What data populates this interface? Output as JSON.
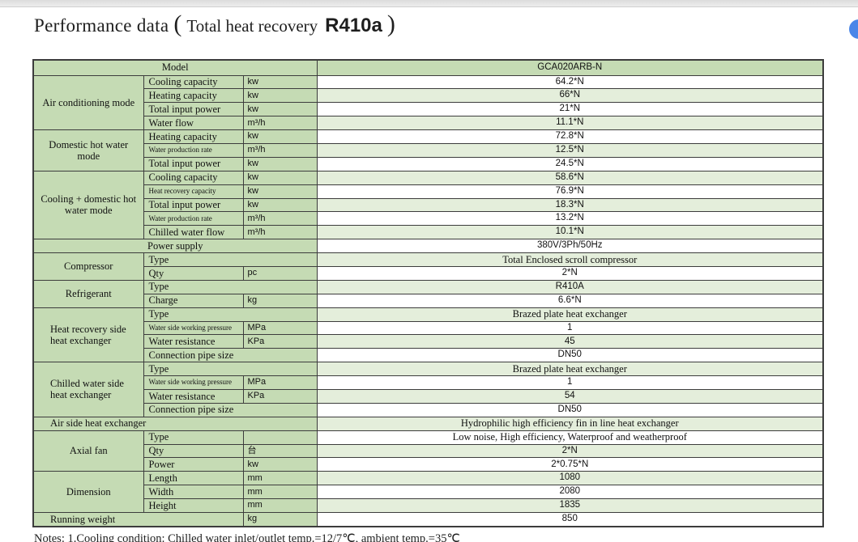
{
  "title": {
    "prefix": "Performance data",
    "paren_open": "(",
    "middle": "Total heat recovery",
    "model_code": "R410a",
    "paren_close": ")"
  },
  "colors": {
    "label_green": "#c5dbb4",
    "row_green": "#e4eedb",
    "border": "#3c3c3c",
    "accent_blue": "#4a86e8"
  },
  "table": {
    "model_row": {
      "label": "Model",
      "value": "GCA020ARB-N"
    },
    "rows": [
      {
        "cat": "Air conditioning mode",
        "label": "Cooling capacity",
        "unit": "kw",
        "value": "64.2*N"
      },
      {
        "label": "Heating capacity",
        "unit": "kw",
        "value": "66*N"
      },
      {
        "label": "Total input power",
        "unit": "kw",
        "value": "21*N"
      },
      {
        "label": "Water flow",
        "unit": "m³/h",
        "value": "11.1*N"
      },
      {
        "cat": "Domestic hot water mode",
        "label": "Heating capacity",
        "unit": "kw",
        "value": "72.8*N"
      },
      {
        "label": "Water production rate",
        "unit": "m³/h",
        "value": "12.5*N"
      },
      {
        "label": "Total input power",
        "unit": "kw",
        "value": "24.5*N"
      },
      {
        "cat": "Cooling + domestic hot water mode",
        "label": "Cooling capacity",
        "unit": "kw",
        "value": "58.6*N"
      },
      {
        "label": "Heat recovery capacity",
        "unit": "kw",
        "value": "76.9*N"
      },
      {
        "label": "Total input power",
        "unit": "kw",
        "value": "18.3*N"
      },
      {
        "label": "Water production rate",
        "unit": "m³/h",
        "value": "13.2*N"
      },
      {
        "label": "Chilled water flow",
        "unit": "m³/h",
        "value": "10.1*N"
      },
      {
        "label": "Power supply",
        "value": "380V/3Ph/50Hz"
      },
      {
        "cat": "Compressor",
        "label": "Type",
        "value": "Total Enclosed scroll compressor"
      },
      {
        "label": "Qty",
        "unit": "pc",
        "value": "2*N"
      },
      {
        "cat": "Refrigerant",
        "label": "Type",
        "value": "R410A"
      },
      {
        "label": "Charge",
        "unit": "kg",
        "value": "6.6*N"
      },
      {
        "cat": "Heat recovery side heat exchanger",
        "label": "Type",
        "value": "Brazed plate heat exchanger"
      },
      {
        "label": "Water side working pressure",
        "unit": "MPa",
        "value": "1"
      },
      {
        "label": "Water resistance",
        "unit": "KPa",
        "value": "45"
      },
      {
        "label": "Connection pipe size",
        "value": "DN50"
      },
      {
        "cat": "Chilled water side heat exchanger",
        "label": "Type",
        "value": "Brazed plate heat exchanger"
      },
      {
        "label": "Water side working pressure",
        "unit": "MPa",
        "value": "1"
      },
      {
        "label": "Water resistance",
        "unit": "KPa",
        "value": "54"
      },
      {
        "label": "Connection pipe size",
        "value": "DN50"
      },
      {
        "label": "Air side heat exchanger",
        "value": "Hydrophilic high efficiency fin in line heat exchanger"
      },
      {
        "cat": "Axial fan",
        "label": "Type",
        "unit": "",
        "value": "Low noise, High efficiency, Waterproof and weatherproof"
      },
      {
        "label": "Qty",
        "unit": "台",
        "value": "2*N"
      },
      {
        "label": "Power",
        "unit": "kw",
        "value": "2*0.75*N"
      },
      {
        "cat": "Dimension",
        "label": "Length",
        "unit": "mm",
        "value": "1080"
      },
      {
        "label": "Width",
        "unit": "mm",
        "value": "2080"
      },
      {
        "label": "Height",
        "unit": "mm",
        "value": "1835"
      },
      {
        "label": "Running weight",
        "unit": "kg",
        "value": "850"
      }
    ]
  },
  "note": "Notes: 1.Cooling condition: Chilled water inlet/outlet temp.=12/7℃, ambient temp.=35℃"
}
